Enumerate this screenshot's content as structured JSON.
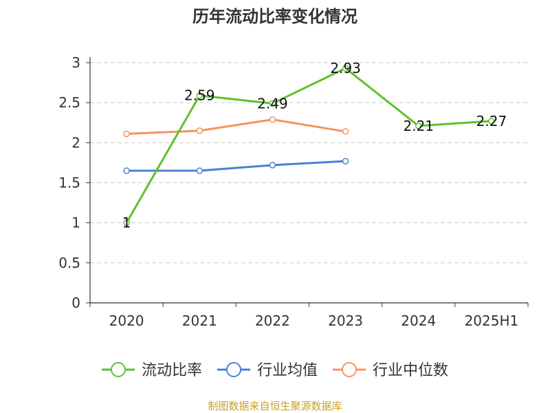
{
  "chart_data": {
    "type": "line",
    "title": "历年流动比率变化情况",
    "categories": [
      "2020",
      "2021",
      "2022",
      "2023",
      "2024",
      "2025H1"
    ],
    "yticks": [
      "0",
      "0.5",
      "1",
      "1.5",
      "2",
      "2.5",
      "3"
    ],
    "ylim": [
      0,
      3
    ],
    "grid": true,
    "legend_position": "bottom",
    "series": [
      {
        "name": "流动比率",
        "color": "#5dc22c",
        "values": [
          1,
          2.59,
          2.49,
          2.93,
          2.21,
          2.27
        ],
        "labels": [
          "1",
          "2.59",
          "2.49",
          "2.93",
          "2.21",
          "2.27"
        ]
      },
      {
        "name": "行业均值",
        "color": "#4a7fd4",
        "values": [
          1.65,
          1.65,
          1.72,
          1.77,
          null,
          null
        ]
      },
      {
        "name": "行业中位数",
        "color": "#f5935c",
        "values": [
          2.11,
          2.15,
          2.29,
          2.14,
          null,
          null
        ]
      }
    ]
  },
  "footer": {
    "source": "制图数据来自恒生聚源数据库"
  }
}
